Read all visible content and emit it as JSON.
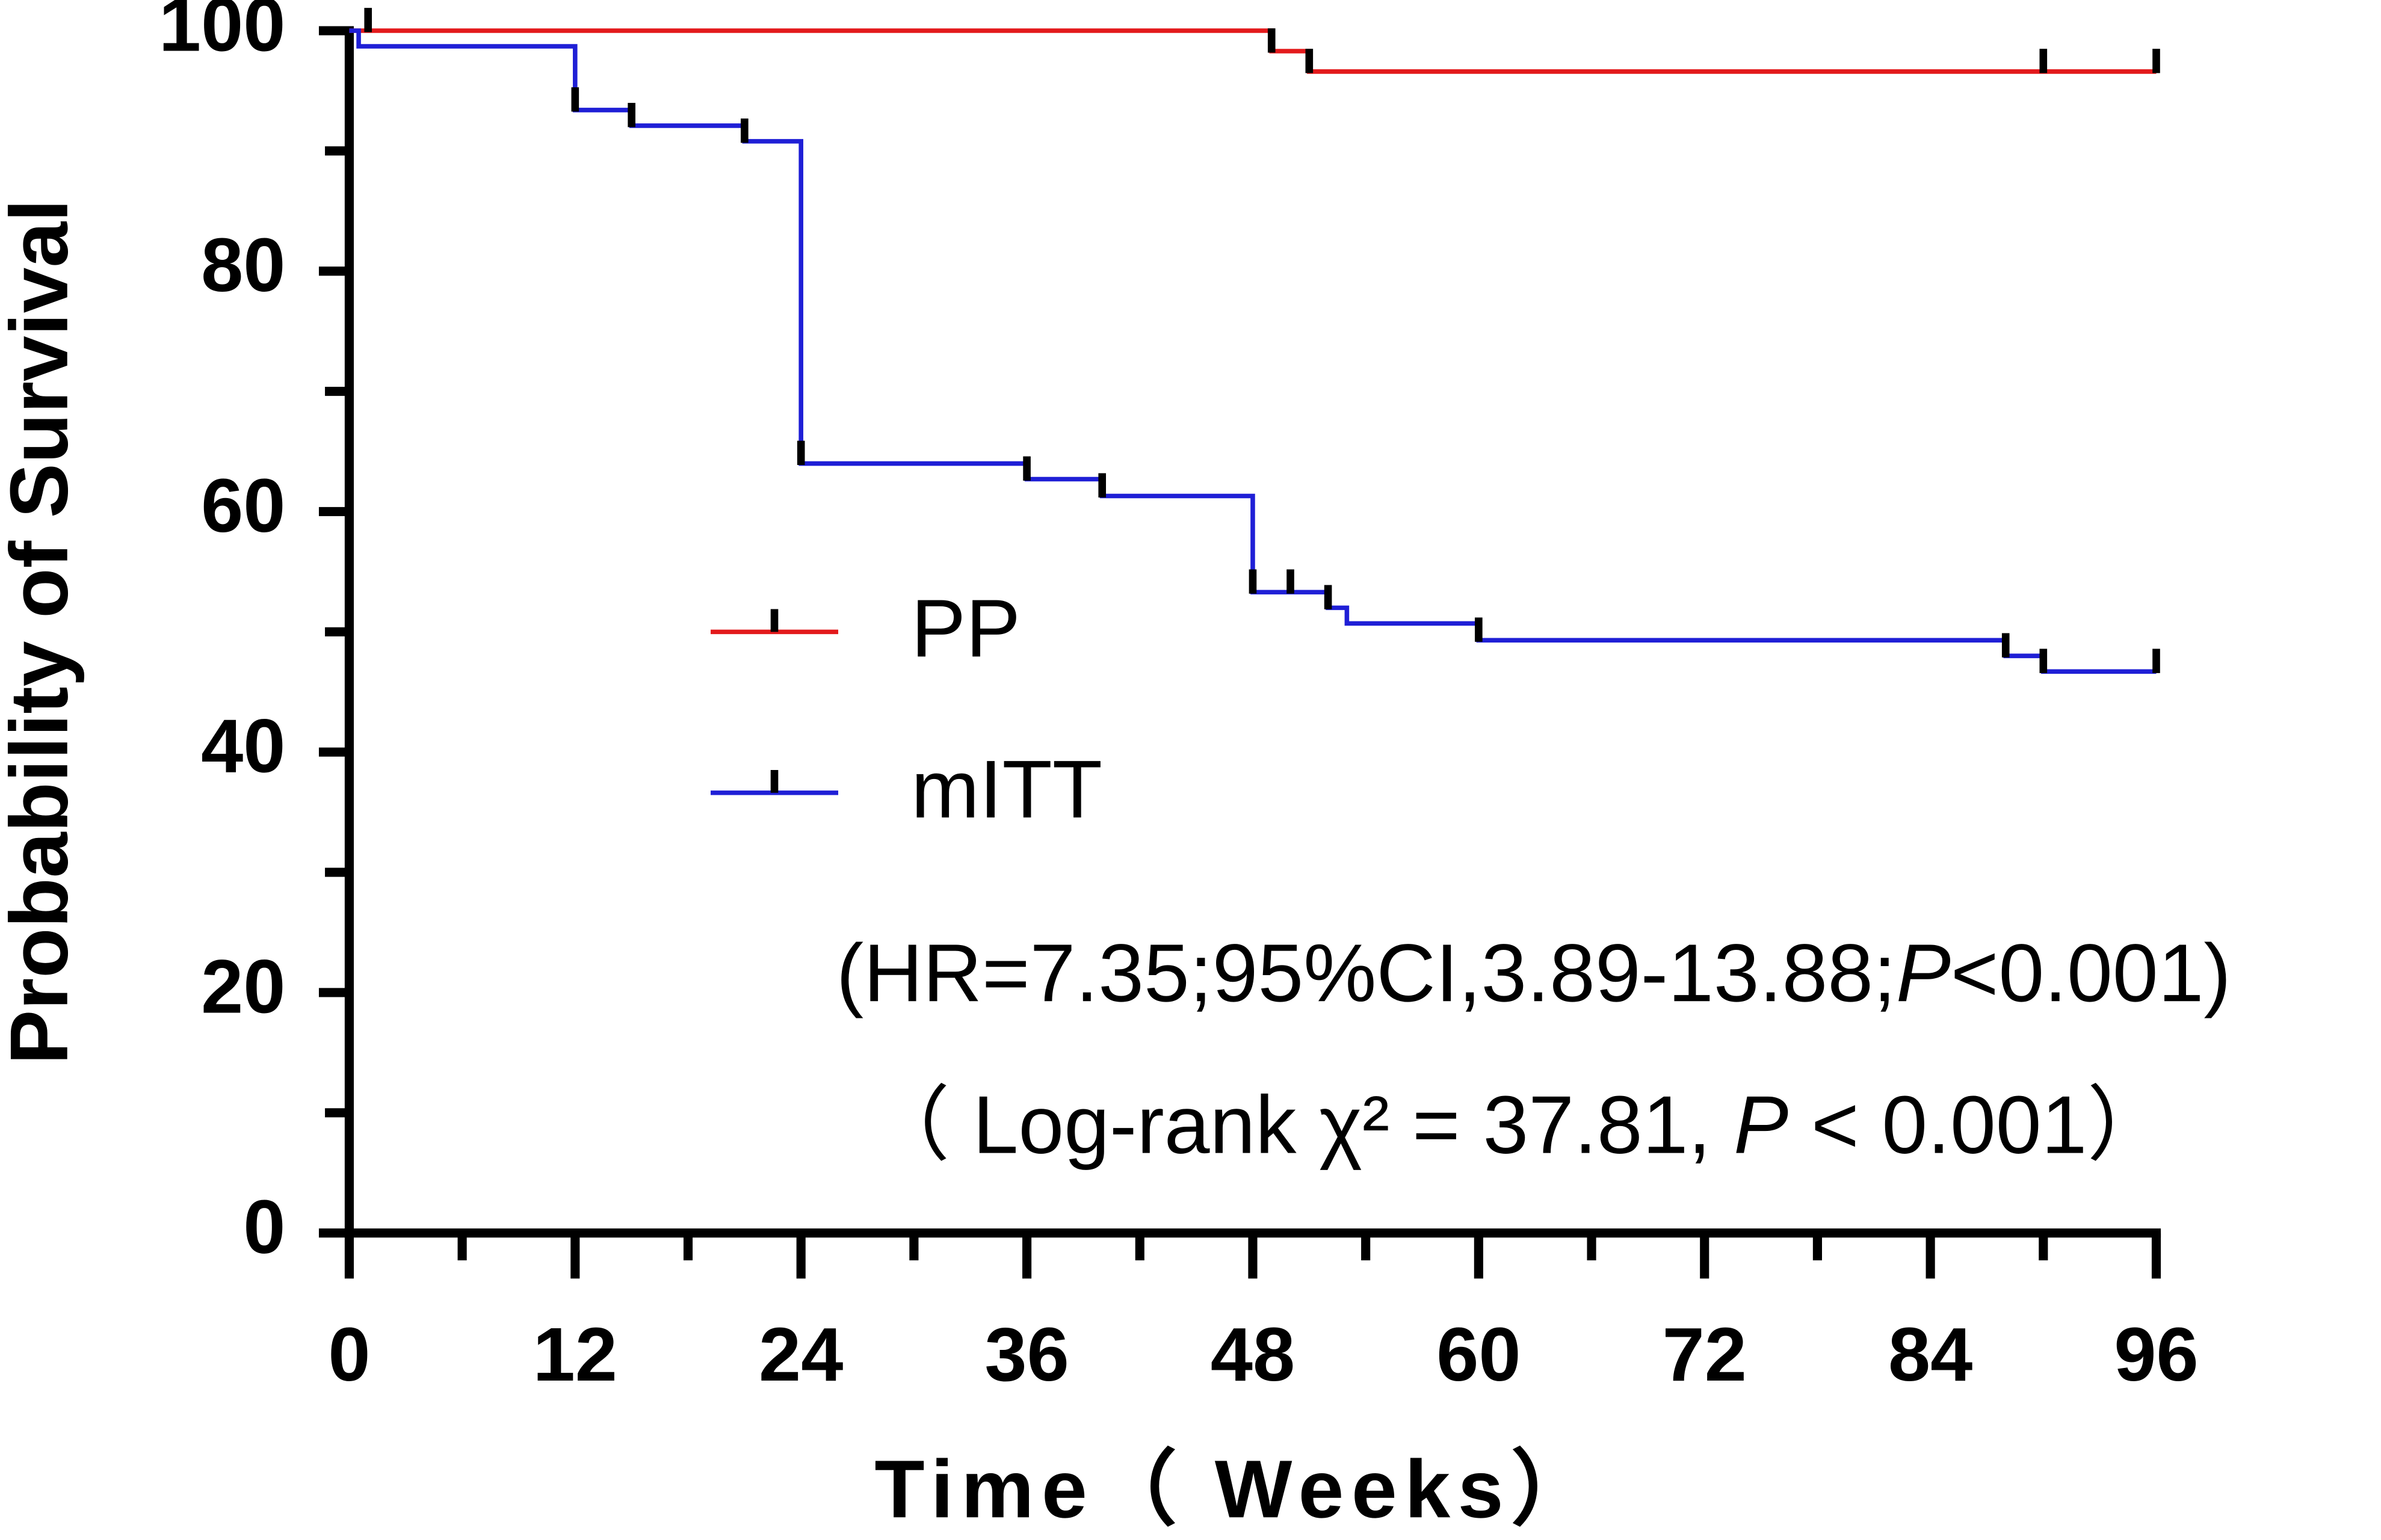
{
  "chart_data": {
    "type": "kaplan-meier",
    "x_label": "Time（ Weeks）",
    "y_label": "Probability of Survival",
    "xlim": [
      0,
      96
    ],
    "xticks": [
      0,
      12,
      24,
      36,
      48,
      60,
      72,
      84,
      96
    ],
    "xminorticks": [
      6,
      18,
      30,
      42,
      54,
      66,
      78,
      90
    ],
    "ylim": [
      0,
      100
    ],
    "yticks": [
      0,
      20,
      40,
      60,
      80,
      100
    ],
    "yminorticks": [
      10,
      30,
      50,
      70,
      90
    ],
    "series": [
      {
        "name": "PP",
        "color": "#e31a1c",
        "x": [
          0,
          49,
          51
        ],
        "values": [
          100,
          98.3,
          96.6
        ],
        "censored_x": [
          1,
          49,
          51,
          90,
          96
        ],
        "censored_values": [
          100,
          98.3,
          96.6,
          96.6,
          96.6
        ]
      },
      {
        "name": "mITT",
        "color": "#1f1fd6",
        "x": [
          0,
          0.5,
          12,
          15,
          21,
          24,
          36,
          40,
          48,
          52,
          53,
          60,
          88,
          90
        ],
        "values": [
          100,
          98.7,
          93.4,
          92.1,
          90.8,
          64.0,
          62.7,
          61.3,
          53.3,
          52.0,
          50.7,
          49.3,
          48.0,
          46.7
        ],
        "censored_x": [
          12,
          15,
          21,
          24,
          36,
          40,
          48,
          50,
          52,
          60,
          88,
          90,
          96
        ],
        "censored_values": [
          93.4,
          92.1,
          90.8,
          64.0,
          62.7,
          61.3,
          53.3,
          53.3,
          52.0,
          49.3,
          48.0,
          46.7,
          46.7
        ]
      }
    ],
    "annotations": [
      {
        "parts": [
          "(HR=7.35;95%CI,3.89-13.88;",
          "P",
          "<0.001)"
        ],
        "italic": [
          false,
          true,
          false
        ]
      },
      {
        "parts": [
          "（ Log-rank χ² = 37.81, ",
          "P",
          " < 0.001）"
        ],
        "italic": [
          false,
          true,
          false
        ]
      }
    ]
  }
}
